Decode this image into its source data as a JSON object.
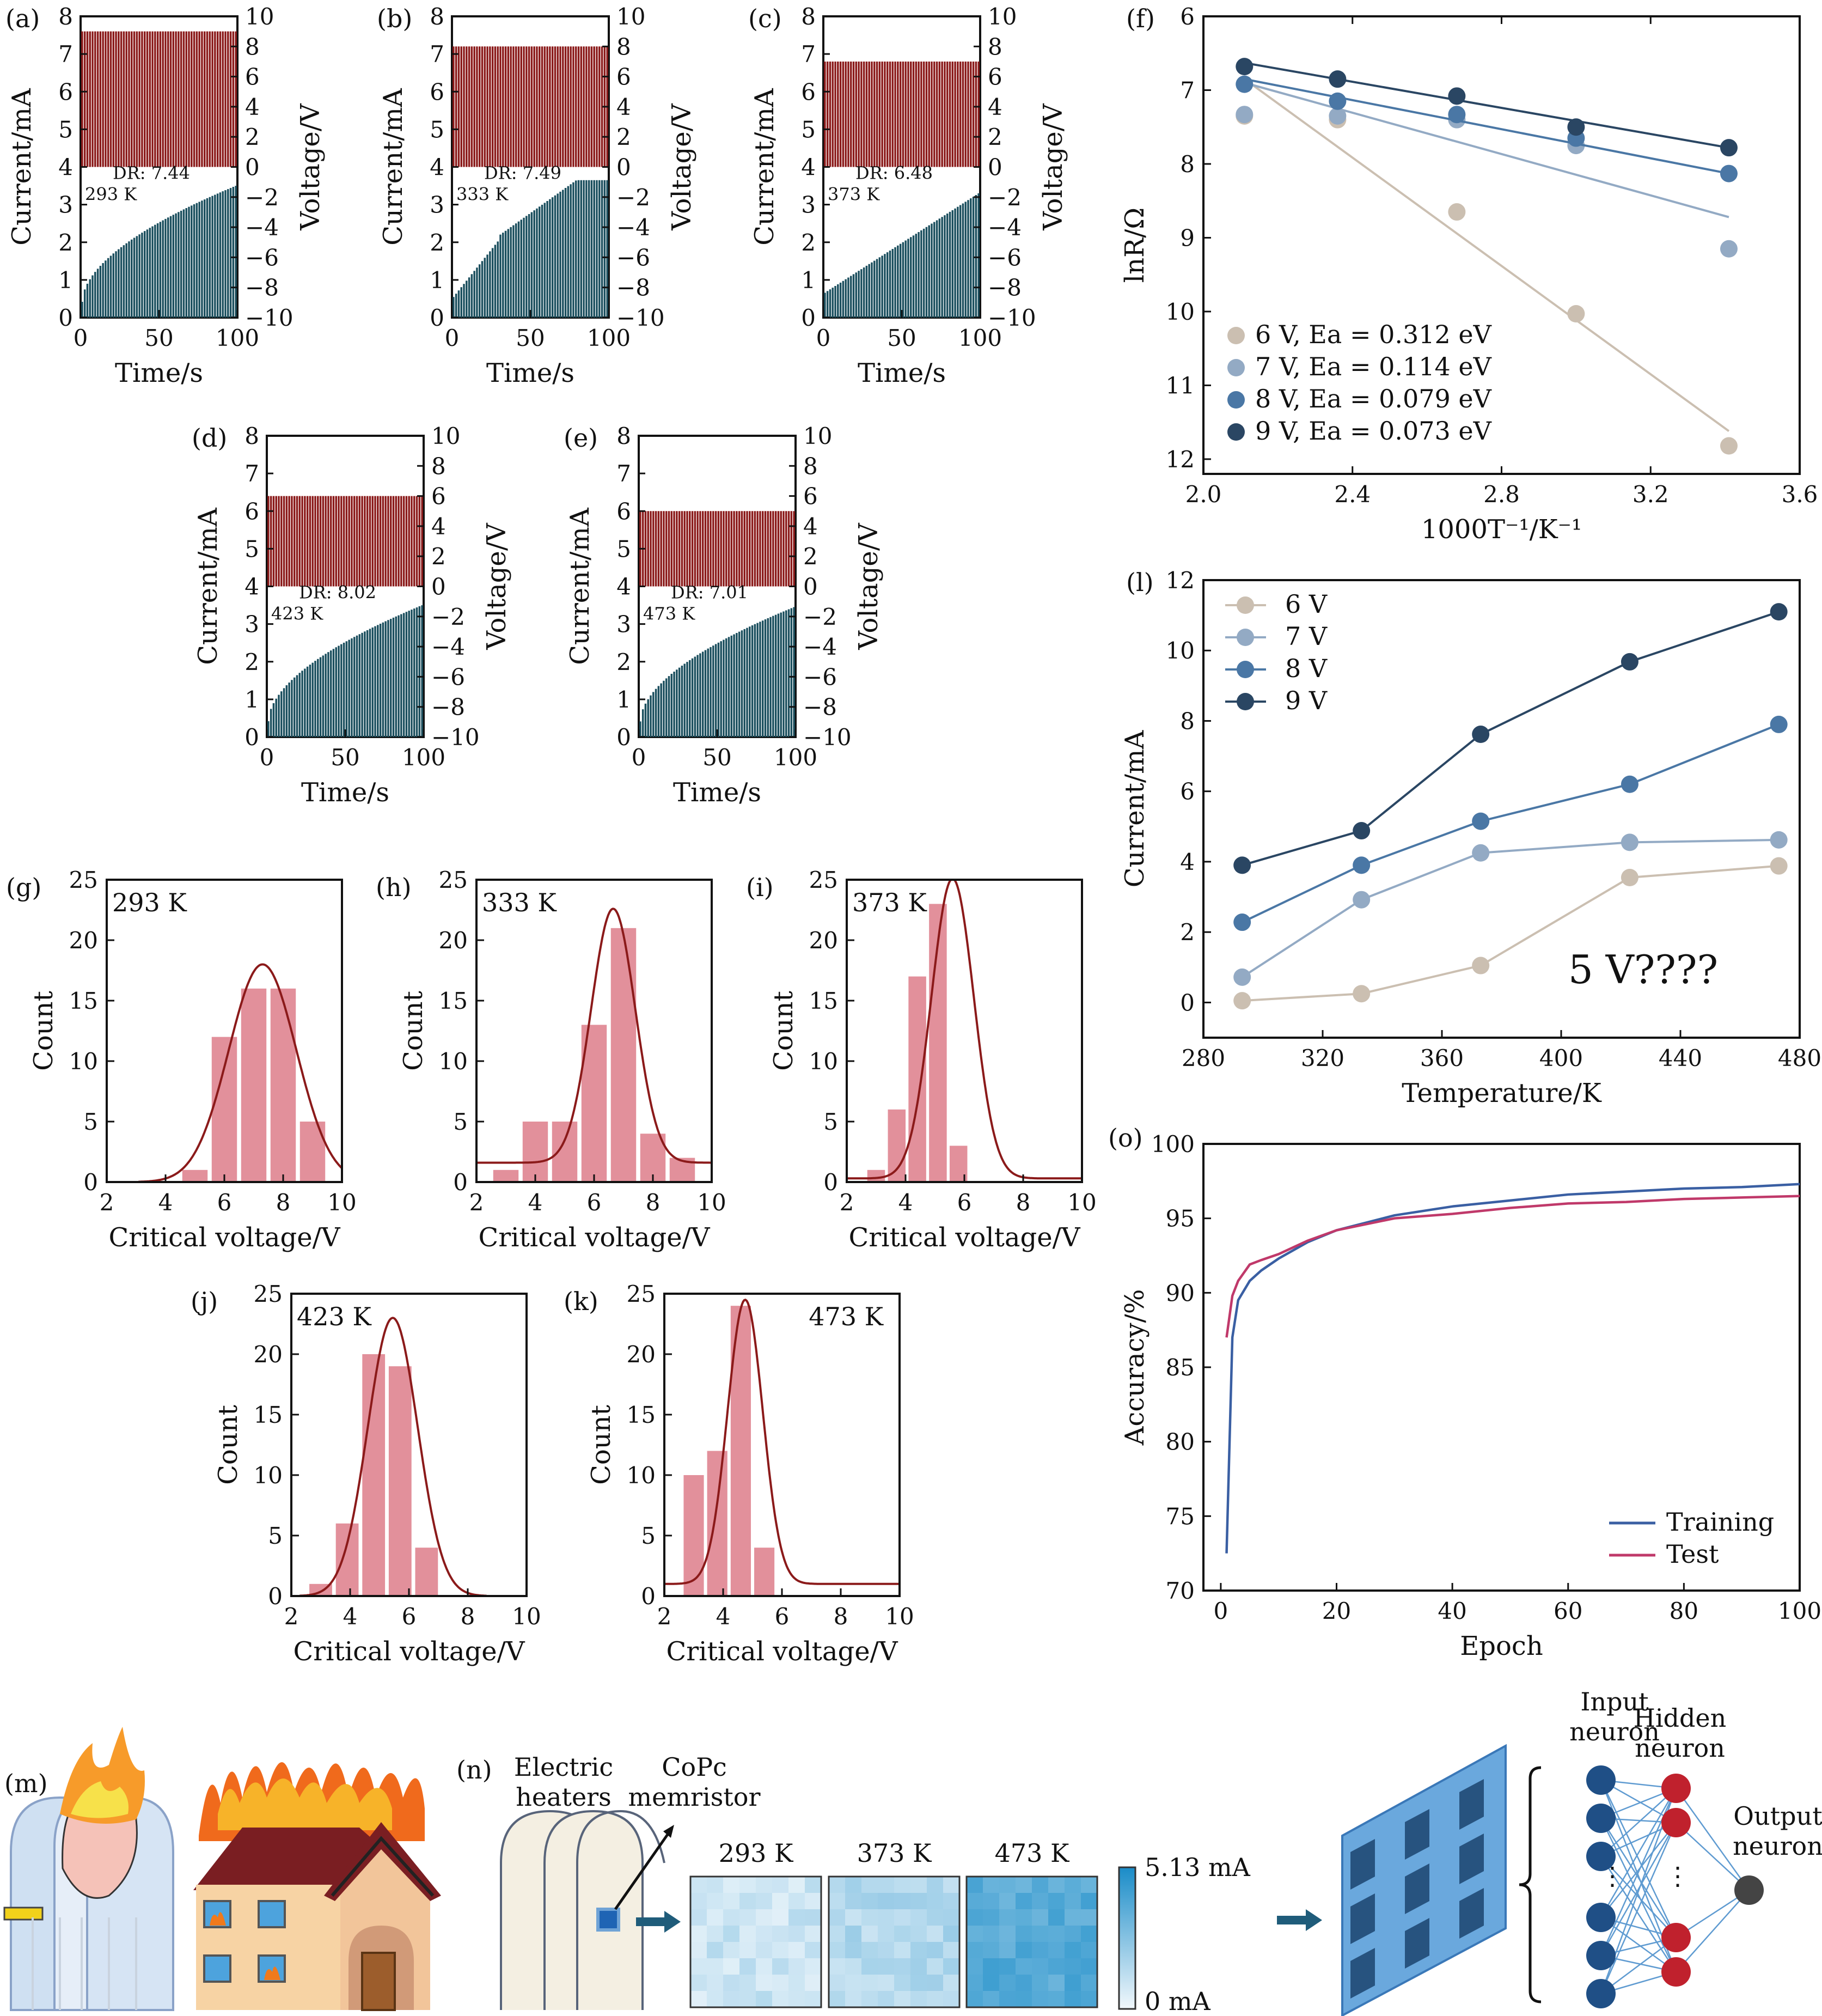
{
  "colors": {
    "teal": "#1b4f5e",
    "red": "#8b1a1a",
    "pink": "#e2909b",
    "fit": "#8b1a1a",
    "v6": "#cbbfb1",
    "v7": "#93aac4",
    "v8": "#4a77a5",
    "v9": "#2a4663",
    "train": "#3a5fa3",
    "test": "#c0396a"
  },
  "chart_data": [
    {
      "id": "a",
      "panel_label": "(a)",
      "type": "bar",
      "temp": "293 K",
      "dr": "DR: 7.44",
      "xlabel": "Time/s",
      "ylabel": "Current/mA",
      "y2label": "Voltage/V",
      "xlim": [
        0,
        100
      ],
      "xticks": [
        0,
        50,
        100
      ],
      "ylim": [
        0,
        8
      ],
      "yticks": [
        0,
        1,
        2,
        3,
        4,
        5,
        6,
        7,
        8
      ],
      "y2lim": [
        -10,
        10
      ],
      "y2ticks": [
        10,
        8,
        6,
        4,
        2,
        0,
        -2,
        -4,
        -6,
        -8,
        -10
      ],
      "voltage_amplitude": 9.0,
      "current_max": 3.5
    },
    {
      "id": "b",
      "panel_label": "(b)",
      "type": "bar",
      "temp": "333 K",
      "dr": "DR: 7.49",
      "xlabel": "Time/s",
      "ylabel": "Current/mA",
      "y2label": "Voltage/V",
      "xlim": [
        0,
        100
      ],
      "xticks": [
        0,
        50,
        100
      ],
      "ylim": [
        0,
        8
      ],
      "yticks": [
        0,
        1,
        2,
        3,
        4,
        5,
        6,
        7,
        8
      ],
      "y2lim": [
        -10,
        10
      ],
      "y2ticks": [
        10,
        8,
        6,
        4,
        2,
        0,
        -2,
        -4,
        -6,
        -8,
        -10
      ],
      "voltage_amplitude": 8.0,
      "current_max": 3.65
    },
    {
      "id": "c",
      "panel_label": "(c)",
      "type": "bar",
      "temp": "373 K",
      "dr": "DR: 6.48",
      "xlabel": "Time/s",
      "ylabel": "Current/mA",
      "y2label": "Voltage/V",
      "xlim": [
        0,
        100
      ],
      "xticks": [
        0,
        50,
        100
      ],
      "ylim": [
        0,
        8
      ],
      "yticks": [
        0,
        1,
        2,
        3,
        4,
        5,
        6,
        7,
        8
      ],
      "y2lim": [
        -10,
        10
      ],
      "y2ticks": [
        10,
        8,
        6,
        4,
        2,
        0,
        -2,
        -4,
        -6,
        -8,
        -10
      ],
      "voltage_amplitude": 7.0,
      "current_max": 3.3
    },
    {
      "id": "d",
      "panel_label": "(d)",
      "type": "bar",
      "temp": "423 K",
      "dr": "DR: 8.02",
      "xlabel": "Time/s",
      "ylabel": "Current/mA",
      "y2label": "Voltage/V",
      "xlim": [
        0,
        100
      ],
      "xticks": [
        0,
        50,
        100
      ],
      "ylim": [
        0,
        8
      ],
      "yticks": [
        0,
        1,
        2,
        3,
        4,
        5,
        6,
        7,
        8
      ],
      "y2lim": [
        -10,
        10
      ],
      "y2ticks": [
        10,
        8,
        6,
        4,
        2,
        0,
        -2,
        -4,
        -6,
        -8,
        -10
      ],
      "voltage_amplitude": 6.0,
      "current_max": 3.5
    },
    {
      "id": "e",
      "panel_label": "(e)",
      "type": "bar",
      "temp": "473 K",
      "dr": "DR: 7.01",
      "xlabel": "Time/s",
      "ylabel": "Current/mA",
      "y2label": "Voltage/V",
      "xlim": [
        0,
        100
      ],
      "xticks": [
        0,
        50,
        100
      ],
      "ylim": [
        0,
        8
      ],
      "yticks": [
        0,
        1,
        2,
        3,
        4,
        5,
        6,
        7,
        8
      ],
      "y2lim": [
        -10,
        10
      ],
      "y2ticks": [
        10,
        8,
        6,
        4,
        2,
        0,
        -2,
        -4,
        -6,
        -8,
        -10
      ],
      "voltage_amplitude": 5.0,
      "current_max": 3.45
    },
    {
      "id": "f",
      "panel_label": "(f)",
      "type": "scatter",
      "xlabel": "1000T⁻¹/K⁻¹",
      "ylabel": "lnR/Ω",
      "xlim": [
        2.0,
        3.6
      ],
      "xticks": [
        2.0,
        2.4,
        2.8,
        3.2,
        3.6
      ],
      "ylim": [
        12.2,
        6
      ],
      "yticks": [
        6,
        7,
        8,
        9,
        10,
        11,
        12
      ],
      "y_inverted": true,
      "x": [
        2.11,
        2.36,
        2.68,
        3.0,
        3.41
      ],
      "series": [
        {
          "name": "6 V, Ea = 0.312 eV",
          "values": [
            7.35,
            7.4,
            8.65,
            10.03,
            11.82
          ],
          "fit": [
            6.85,
            11.62
          ]
        },
        {
          "name": "7 V, Ea = 0.114 eV",
          "values": [
            7.33,
            7.35,
            7.4,
            7.75,
            9.15
          ],
          "fit": [
            6.9,
            8.72
          ]
        },
        {
          "name": "8 V, Ea = 0.079 eV",
          "values": [
            6.92,
            7.15,
            7.33,
            7.65,
            8.13
          ],
          "fit": [
            6.85,
            8.13
          ]
        },
        {
          "name": "9 V, Ea = 0.073 eV",
          "values": [
            6.68,
            6.85,
            7.08,
            7.5,
            7.78
          ],
          "fit": [
            6.63,
            7.78
          ]
        }
      ]
    },
    {
      "id": "l",
      "panel_label": "(l)",
      "type": "line",
      "xlabel": "Temperature/K",
      "ylabel": "Current/mA",
      "annotation": "5 V????",
      "xlim": [
        280,
        480
      ],
      "xticks": [
        280,
        320,
        360,
        400,
        440,
        480
      ],
      "ylim": [
        -1,
        12
      ],
      "yticks": [
        0,
        2,
        4,
        6,
        8,
        10,
        12
      ],
      "x": [
        293,
        333,
        373,
        423,
        473
      ],
      "series": [
        {
          "name": "6 V",
          "values": [
            0.05,
            0.25,
            1.05,
            3.55,
            3.88
          ]
        },
        {
          "name": "7 V",
          "values": [
            0.72,
            2.92,
            4.25,
            4.55,
            4.62
          ]
        },
        {
          "name": "8 V",
          "values": [
            2.28,
            3.9,
            5.15,
            6.2,
            7.9
          ]
        },
        {
          "name": "9 V",
          "values": [
            3.9,
            4.88,
            7.62,
            9.68,
            11.1
          ]
        }
      ]
    },
    {
      "id": "o",
      "panel_label": "(o)",
      "type": "line",
      "xlabel": "Epoch",
      "ylabel": "Accuracy/%",
      "xlim": [
        -3,
        100
      ],
      "xticks": [
        0,
        20,
        40,
        60,
        80,
        100
      ],
      "ylim": [
        70,
        100
      ],
      "yticks": [
        70,
        75,
        80,
        85,
        90,
        95,
        100
      ],
      "series": [
        {
          "name": "Training",
          "x": [
            1,
            2,
            3,
            5,
            7,
            10,
            15,
            20,
            30,
            40,
            50,
            60,
            70,
            80,
            90,
            100
          ],
          "values": [
            72.5,
            87.0,
            89.5,
            90.8,
            91.5,
            92.3,
            93.4,
            94.2,
            95.2,
            95.8,
            96.2,
            96.6,
            96.8,
            97.0,
            97.1,
            97.3
          ]
        },
        {
          "name": "Test",
          "x": [
            1,
            2,
            3,
            5,
            7,
            10,
            15,
            20,
            30,
            40,
            50,
            60,
            70,
            80,
            90,
            100
          ],
          "values": [
            87.0,
            89.8,
            90.8,
            91.9,
            92.2,
            92.6,
            93.5,
            94.2,
            95.0,
            95.3,
            95.7,
            96.0,
            96.1,
            96.3,
            96.4,
            96.5
          ]
        }
      ]
    },
    {
      "id": "g",
      "panel_label": "(g)",
      "type": "bar",
      "temp": "293 K",
      "xlabel": "Critical voltage/V",
      "ylabel": "Count",
      "xlim": [
        2,
        10
      ],
      "xticks": [
        2,
        4,
        6,
        8,
        10
      ],
      "ylim": [
        0,
        25
      ],
      "yticks": [
        0,
        5,
        10,
        15,
        20,
        25
      ],
      "bar_centers": [
        5.0,
        6.0,
        7.0,
        8.0,
        9.0
      ],
      "values": [
        1,
        12,
        16,
        16,
        5
      ],
      "fit": {
        "mu": 7.3,
        "sigma": 1.15,
        "amp": 18.0,
        "base": 0
      }
    },
    {
      "id": "h",
      "panel_label": "(h)",
      "type": "bar",
      "temp": "333 K",
      "xlabel": "Critical voltage/V",
      "ylabel": "Count",
      "xlim": [
        2,
        10
      ],
      "xticks": [
        2,
        4,
        6,
        8,
        10
      ],
      "ylim": [
        0,
        25
      ],
      "yticks": [
        0,
        5,
        10,
        15,
        20,
        25
      ],
      "bar_centers": [
        3.0,
        4.0,
        5.0,
        6.0,
        7.0,
        8.0,
        9.0
      ],
      "values": [
        1,
        5,
        5,
        13,
        21,
        4,
        2
      ],
      "fit": {
        "mu": 6.65,
        "sigma": 0.75,
        "amp": 21.0,
        "base": 1.6
      }
    },
    {
      "id": "i",
      "panel_label": "(i)",
      "type": "bar",
      "temp": "373 K",
      "xlabel": "Critical voltage/V",
      "ylabel": "Count",
      "xlim": [
        2,
        10
      ],
      "xticks": [
        2,
        4,
        6,
        8,
        10
      ],
      "ylim": [
        0,
        25
      ],
      "yticks": [
        0,
        5,
        10,
        15,
        20,
        25
      ],
      "bar_centers": [
        3.0,
        3.7,
        4.4,
        5.1,
        5.8,
        6.5
      ],
      "values": [
        1,
        6,
        17,
        23,
        3,
        0
      ],
      "fit": {
        "mu": 5.6,
        "sigma": 0.72,
        "amp": 24.8,
        "base": 0.3
      }
    },
    {
      "id": "j",
      "panel_label": "(j)",
      "type": "bar",
      "temp": "423 K",
      "xlabel": "Critical voltage/V",
      "ylabel": "Count",
      "xlim": [
        2,
        10
      ],
      "xticks": [
        2,
        4,
        6,
        8,
        10
      ],
      "ylim": [
        0,
        25
      ],
      "yticks": [
        0,
        5,
        10,
        15,
        20,
        25
      ],
      "bar_centers": [
        3.0,
        3.9,
        4.8,
        5.7,
        6.6
      ],
      "values": [
        1,
        6,
        20,
        19,
        4
      ],
      "fit": {
        "mu": 5.45,
        "sigma": 0.85,
        "amp": 23.0,
        "base": 0
      }
    },
    {
      "id": "k",
      "panel_label": "(k)",
      "type": "bar",
      "temp": "473 K",
      "xlabel": "Critical voltage/V",
      "ylabel": "Count",
      "xlim": [
        2,
        10
      ],
      "xticks": [
        2,
        4,
        6,
        8,
        10
      ],
      "ylim": [
        0,
        25
      ],
      "yticks": [
        0,
        5,
        10,
        15,
        20,
        25
      ],
      "bar_centers": [
        3.0,
        3.8,
        4.6,
        5.4,
        6.2
      ],
      "values": [
        10,
        12,
        24,
        4,
        0
      ],
      "fit": {
        "mu": 4.75,
        "sigma": 0.6,
        "amp": 23.5,
        "base": 1.0
      }
    }
  ],
  "schematic": {
    "m_label": "(m)",
    "n_label": "(n)",
    "heaters_label_1": "Electric",
    "heaters_label_2": "heaters",
    "memristor_label_1": "CoPc",
    "memristor_label_2": "memristor",
    "maps": [
      "293 K",
      "373 K",
      "473 K"
    ],
    "colorbar_max": "5.13 mA",
    "colorbar_min": "0 mA",
    "input_1": "Input",
    "input_2": "neuron",
    "hidden_1": "Hidden",
    "hidden_2": "neuron",
    "output_1": "Output",
    "output_2": "neuron",
    "dots": "⋮"
  }
}
